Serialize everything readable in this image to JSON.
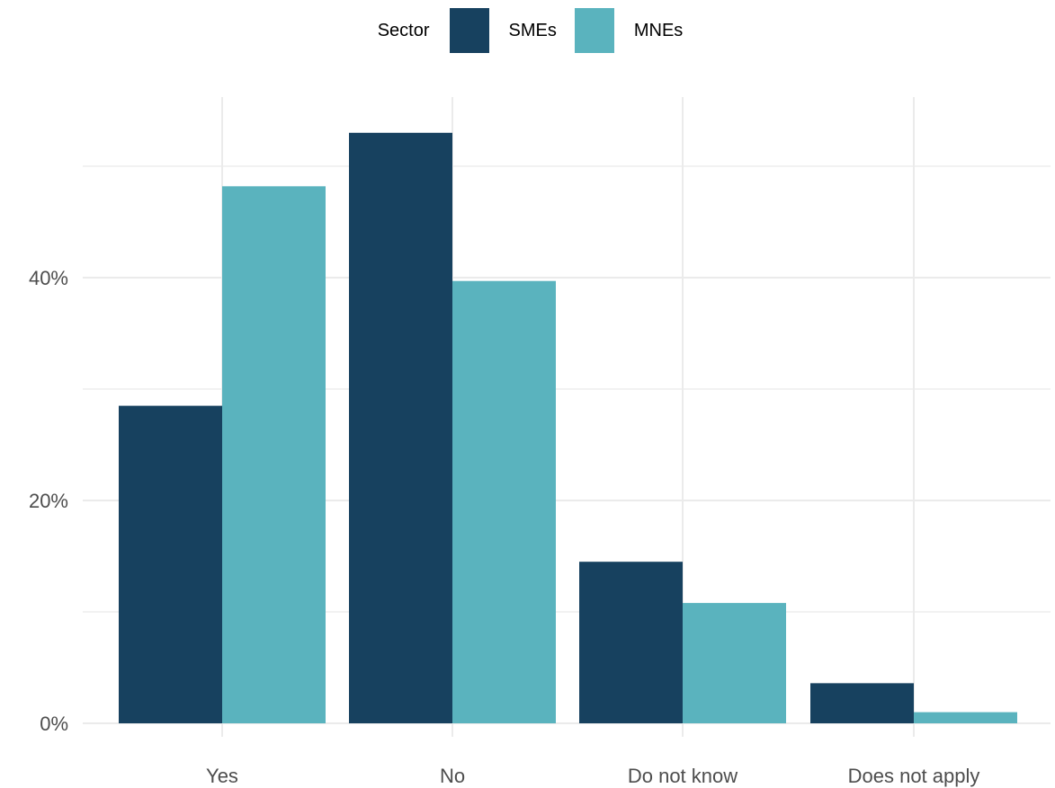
{
  "chart_data": {
    "type": "bar",
    "categories": [
      "Yes",
      "No",
      "Do not know",
      "Does not apply"
    ],
    "series": [
      {
        "name": "SMEs",
        "color": "#17415f",
        "values": [
          28.5,
          53.0,
          14.5,
          3.6
        ]
      },
      {
        "name": "MNEs",
        "color": "#5ab3be",
        "values": [
          48.2,
          39.7,
          10.8,
          1.0
        ]
      }
    ],
    "legend": {
      "title": "Sector",
      "position": "top"
    },
    "ylim": [
      0,
      56
    ],
    "yticks": [
      0,
      20,
      40
    ],
    "ytick_labels": [
      "0%",
      "20%",
      "40%"
    ],
    "xlabel": "",
    "ylabel": "",
    "grid": true
  }
}
